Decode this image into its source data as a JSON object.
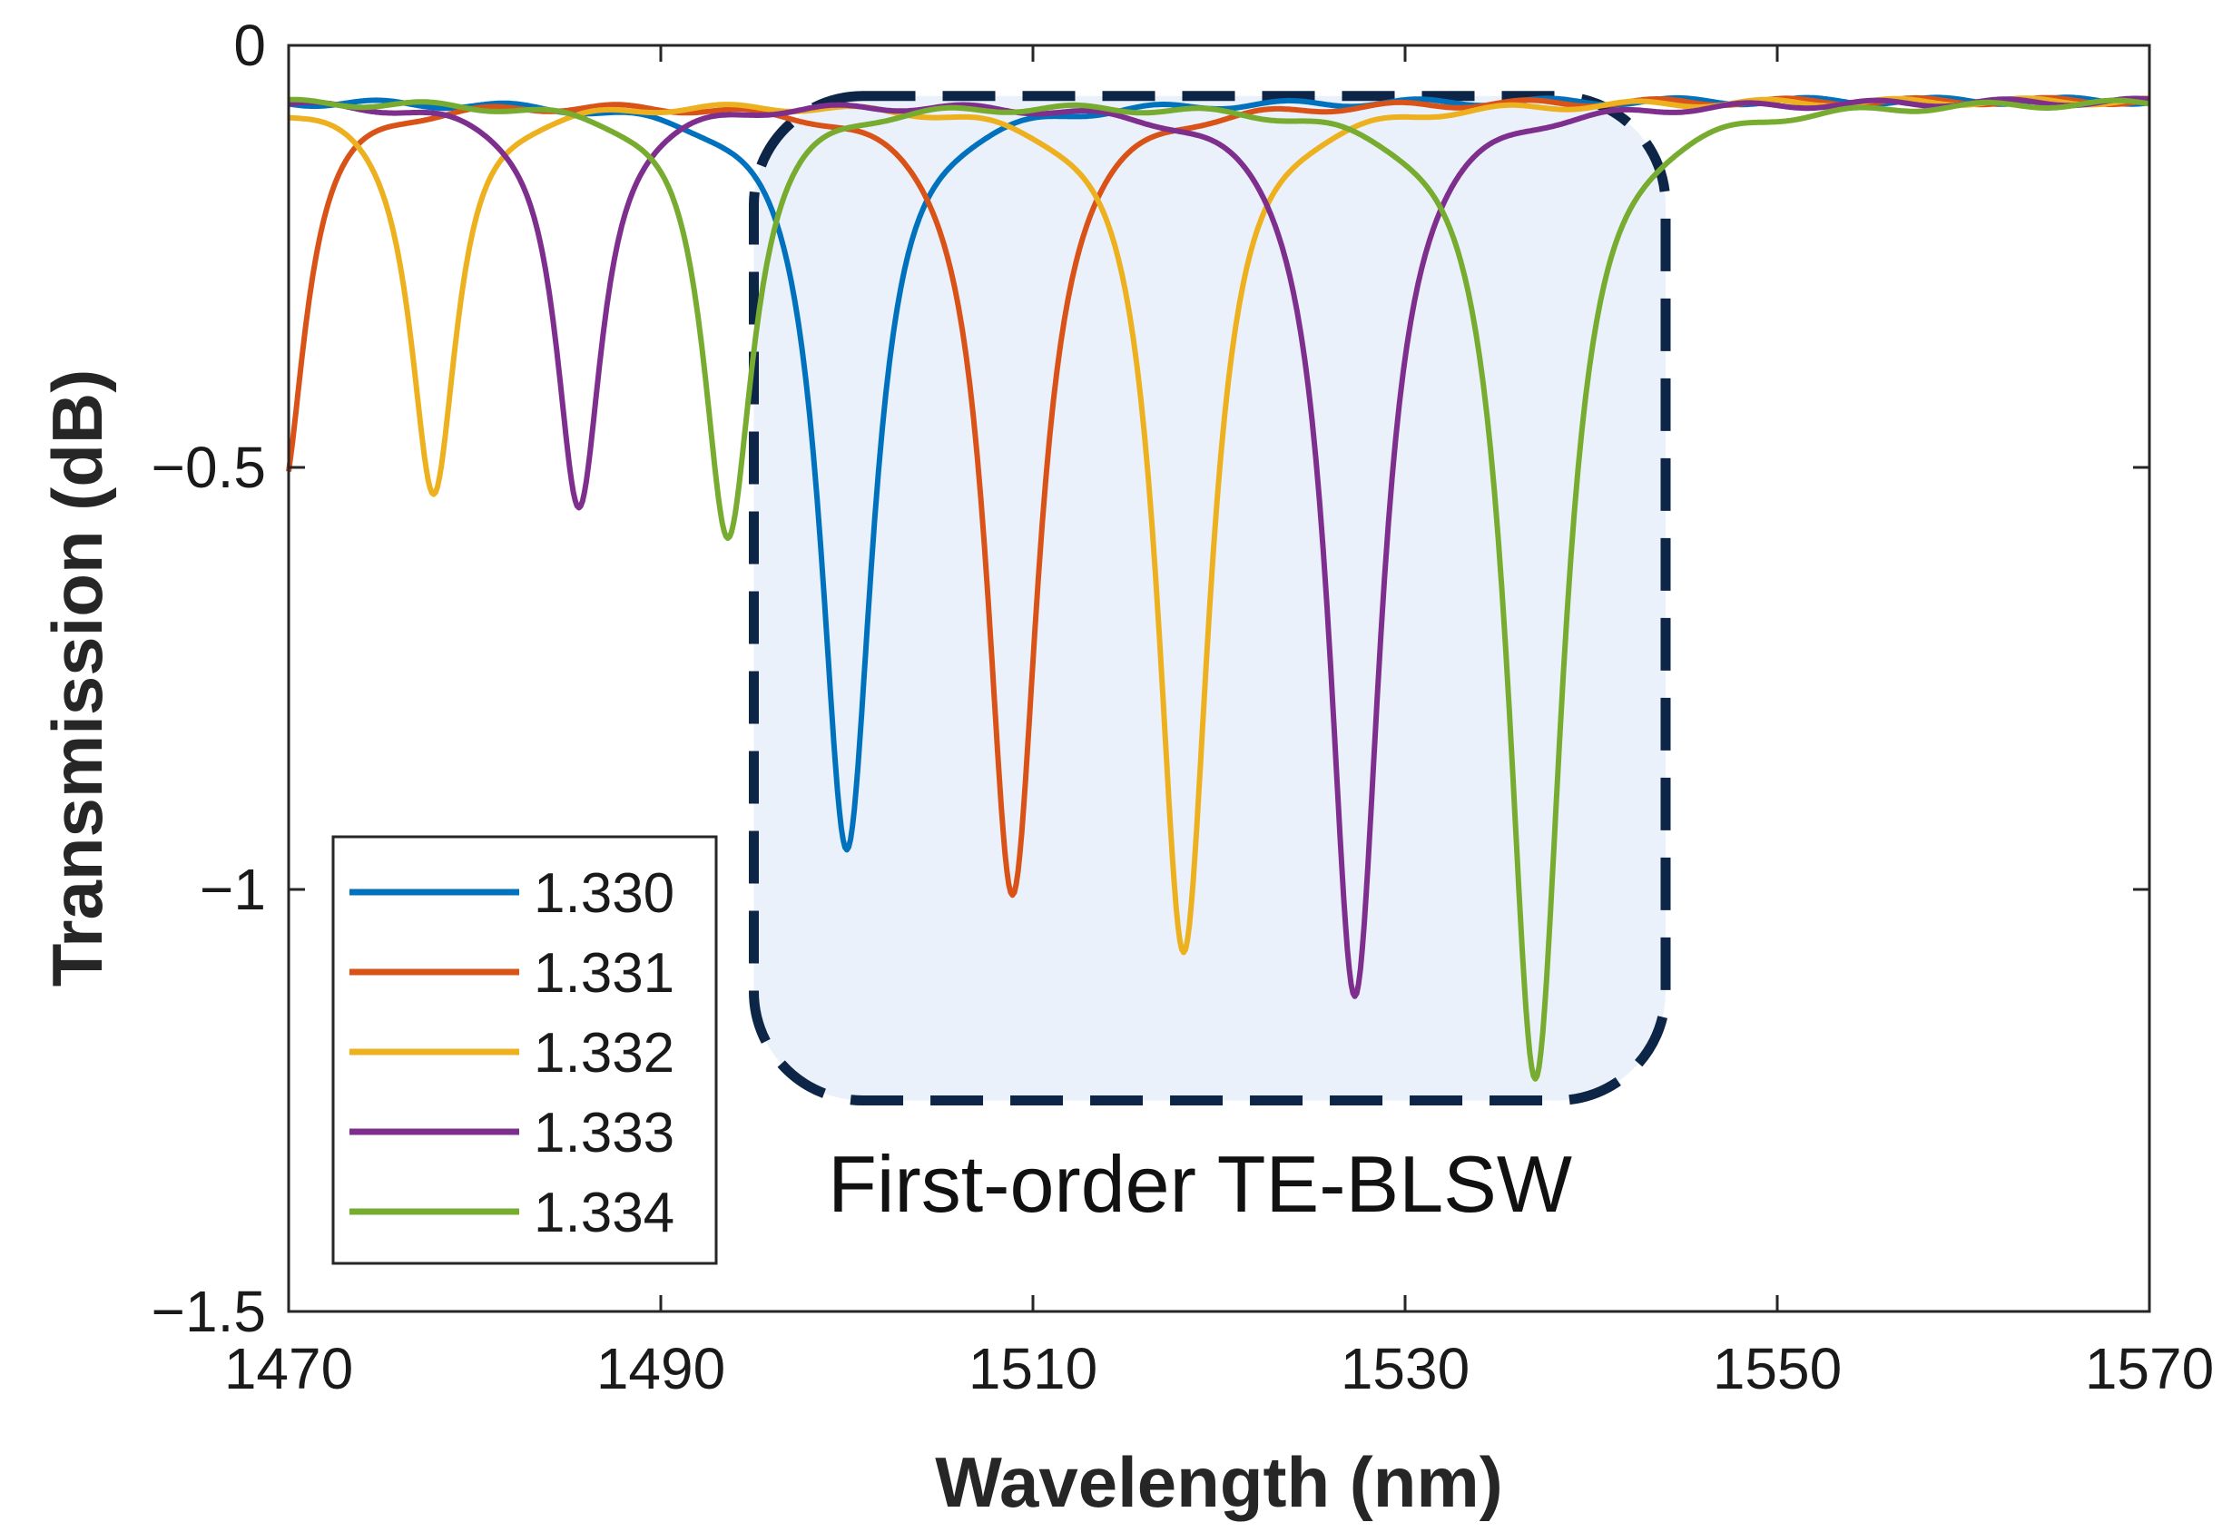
{
  "chart_data": {
    "type": "line",
    "title": "",
    "xlabel": "Wavelength (nm)",
    "ylabel": "Transmission (dB)",
    "xlim": [
      1470,
      1570
    ],
    "ylim": [
      -1.5,
      0
    ],
    "xticks": [
      1470,
      1490,
      1510,
      1530,
      1550,
      1570
    ],
    "yticks": [
      0,
      -0.5,
      -1,
      -1.5
    ],
    "xtick_labels": [
      "1470",
      "1490",
      "1510",
      "1530",
      "1550",
      "1570"
    ],
    "ytick_labels": [
      "0",
      "−0.5",
      "−1",
      "−1.5"
    ],
    "grid": false,
    "legend_position": "bottom-left",
    "baseline": -0.065,
    "series": [
      {
        "name": "1.330",
        "color": "#0072BD",
        "dips": [
          {
            "center": 1500.0,
            "depth": -0.95,
            "width": 1.7
          }
        ]
      },
      {
        "name": "1.331",
        "color": "#D95319",
        "dips": [
          {
            "center": 1469.6,
            "depth": -0.53,
            "width": 1.5
          },
          {
            "center": 1508.9,
            "depth": -1.01,
            "width": 1.7
          }
        ]
      },
      {
        "name": "1.332",
        "color": "#EDB120",
        "dips": [
          {
            "center": 1477.8,
            "depth": -0.53,
            "width": 1.5
          },
          {
            "center": 1518.1,
            "depth": -1.07,
            "width": 1.7
          }
        ]
      },
      {
        "name": "1.333",
        "color": "#7E2F8E",
        "dips": [
          {
            "center": 1485.6,
            "depth": -0.55,
            "width": 1.5
          },
          {
            "center": 1527.3,
            "depth": -1.13,
            "width": 1.7
          }
        ]
      },
      {
        "name": "1.334",
        "color": "#77AC30",
        "dips": [
          {
            "center": 1493.6,
            "depth": -0.58,
            "width": 1.6
          },
          {
            "center": 1537.0,
            "depth": -1.22,
            "width": 1.8
          }
        ]
      }
    ],
    "annotation": {
      "text": "First-order TE-BLSW",
      "region_x": [
        1495,
        1544
      ],
      "region_y": [
        -1.25,
        -0.06
      ],
      "fill": "#EAF1FA",
      "border_color": "#0D2647"
    }
  }
}
